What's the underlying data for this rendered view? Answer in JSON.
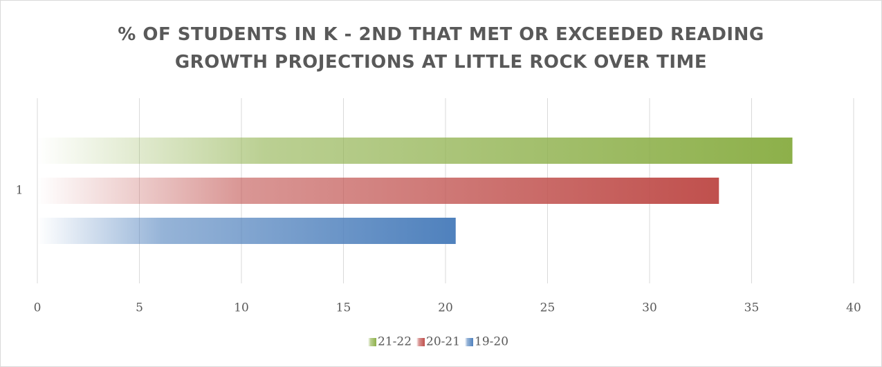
{
  "chart_data": {
    "type": "bar",
    "orientation": "horizontal",
    "title": "% OF STUDENTS IN K - 2ND THAT MET OR EXCEEDED READING GROWTH PROJECTIONS AT LITTLE ROCK OVER TIME",
    "categories": [
      "1"
    ],
    "series": [
      {
        "name": "21-22",
        "color": "#8db04a",
        "values": [
          37
        ]
      },
      {
        "name": "20-21",
        "color": "#c0504d",
        "values": [
          33.4
        ]
      },
      {
        "name": "19-20",
        "color": "#4f81bd",
        "values": [
          20.5
        ]
      }
    ],
    "xlim": [
      0,
      40
    ],
    "xticks": [
      0,
      5,
      10,
      15,
      20,
      25,
      30,
      35,
      40
    ],
    "grid": true,
    "legend": "bottom"
  }
}
